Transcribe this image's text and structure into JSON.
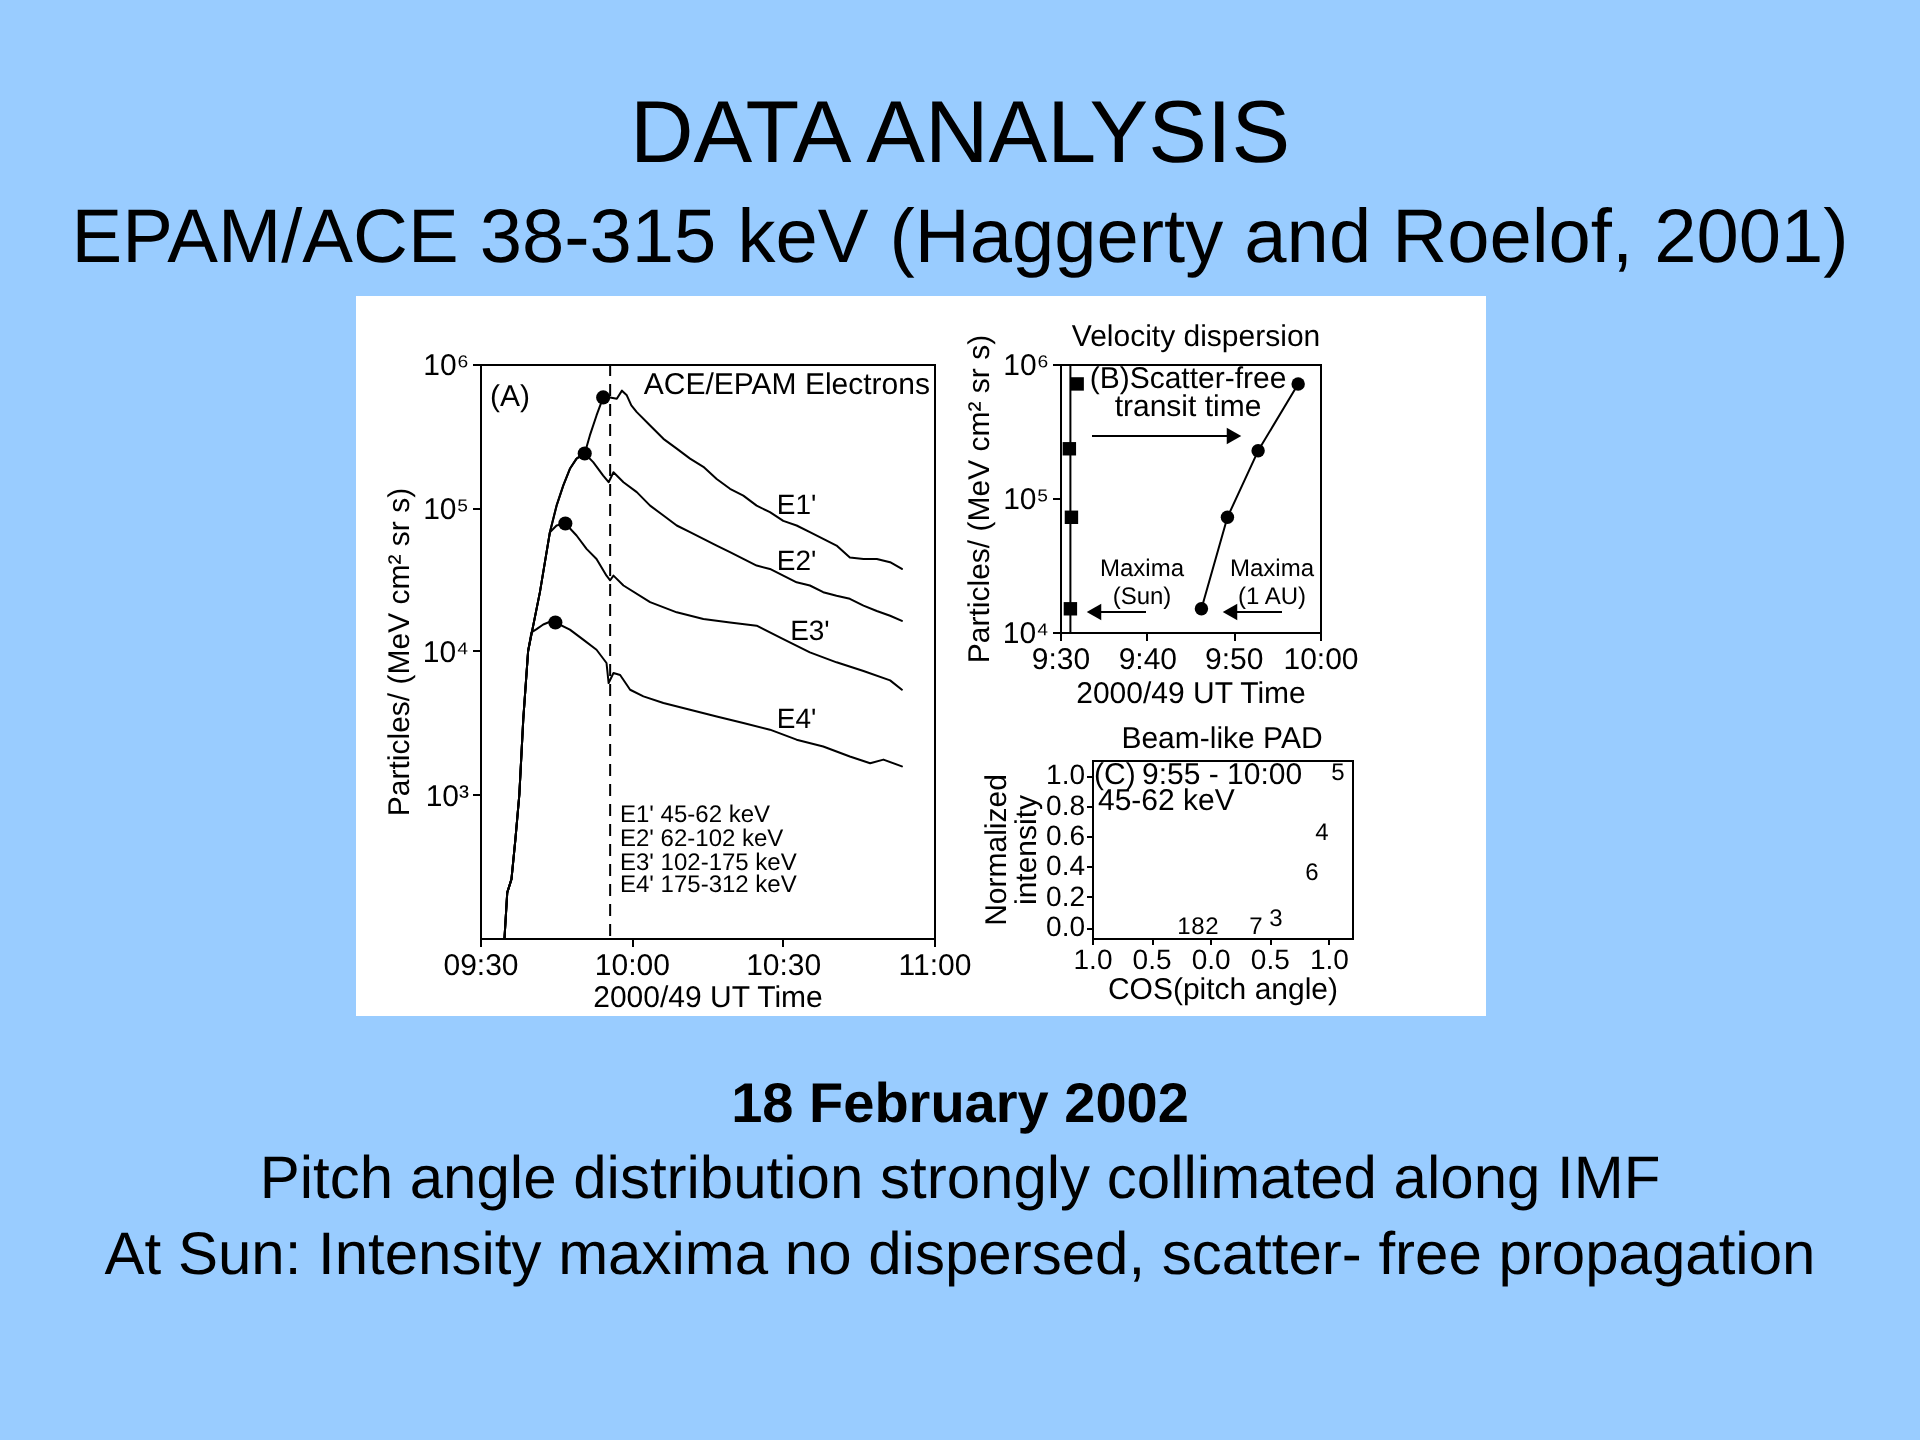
{
  "chart_data": [
    {
      "type": "other",
      "title": "DATA ANALYSIS",
      "subtitle": "EPAM/ACE 38-315 keV  (Haggerty and Roelof, 2001)",
      "annotations": [
        "18 February 2002",
        "Pitch angle distribution strongly collimated along IMF",
        "At Sun: Intensity maxima no dispersed, scatter- free propagation"
      ]
    },
    {
      "type": "line",
      "xlabel": "2000/49 UT Time",
      "ylabel": "Particles/ (MeV cm² sr s)",
      "log": "y",
      "xlim": [
        9.5,
        11
      ],
      "xticks": [
        {
          "value": 9.5,
          "label": "09:30"
        },
        {
          "value": 10,
          "label": "10:00"
        },
        {
          "value": 10.5,
          "label": "10:30"
        },
        {
          "value": 11,
          "label": "11:00"
        }
      ],
      "ylim": [
        100,
        1000000
      ],
      "yticks": [
        {
          "value": 1000,
          "label": "10³"
        },
        {
          "value": 10000,
          "label": "10⁴"
        },
        {
          "value": 100000,
          "label": "10⁵"
        },
        {
          "value": 1000000,
          "label": "10⁶"
        }
      ],
      "series": [
        {
          "name": "E1'",
          "color": "#000000",
          "x": [
            9.581,
            9.59,
            9.604,
            9.617,
            9.63,
            9.643,
            9.659,
            9.698,
            9.731,
            9.753,
            9.775,
            9.797,
            9.819,
            9.846,
            9.863,
            9.885,
            9.907,
            9.93,
            9.952,
            9.969,
            9.985,
            10.0,
            10.018,
            10.062,
            10.106,
            10.15,
            10.194,
            10.238,
            10.282,
            10.326,
            10.37,
            10.414,
            10.458,
            10.502,
            10.546,
            10.59,
            10.634,
            10.678,
            10.722,
            10.767,
            10.811,
            10.855,
            10.894
          ],
          "values": [
            100,
            207,
            257,
            488,
            1000,
            3360,
            10000,
            25700,
            67300,
            103000,
            142000,
            186000,
            219000,
            238000,
            318000,
            438000,
            585000,
            585000,
            573000,
            652000,
            605000,
            515000,
            462000,
            373000,
            301000,
            257000,
            219000,
            192000,
            158000,
            135000,
            121000,
            103000,
            92800,
            80700,
            74900,
            67300,
            60400,
            54300,
            44800,
            43800,
            43800,
            41600,
            37300
          ]
        },
        {
          "name": "E2'",
          "color": "#000000",
          "x": [
            9.581,
            9.59,
            9.604,
            9.617,
            9.63,
            9.643,
            9.659,
            9.698,
            9.731,
            9.753,
            9.775,
            9.797,
            9.819,
            9.846,
            9.874,
            9.907,
            9.925,
            9.941,
            9.974,
            10.018,
            10.062,
            10.106,
            10.15,
            10.194,
            10.238,
            10.282,
            10.326,
            10.37,
            10.414,
            10.458,
            10.502,
            10.546,
            10.59,
            10.634,
            10.678,
            10.722,
            10.767,
            10.811,
            10.855,
            10.894
          ],
          "values": [
            100,
            207,
            257,
            488,
            1000,
            3360,
            10000,
            25700,
            67300,
            103000,
            142000,
            186000,
            219000,
            238000,
            207000,
            167000,
            150000,
            176000,
            150000,
            128000,
            103000,
            88000,
            74900,
            67300,
            60400,
            54300,
            48800,
            43800,
            39400,
            37300,
            33500,
            30100,
            28600,
            25700,
            24300,
            23100,
            20700,
            19000,
            17600,
            16200
          ]
        },
        {
          "name": "E3'",
          "color": "#000000",
          "x": [
            9.581,
            9.59,
            9.604,
            9.617,
            9.63,
            9.643,
            9.659,
            9.698,
            9.731,
            9.753,
            9.782,
            9.819,
            9.852,
            9.885,
            9.918,
            9.93,
            9.941,
            9.974,
            10.062,
            10.15,
            10.238,
            10.326,
            10.414,
            10.502,
            10.59,
            10.678,
            10.767,
            10.855,
            10.894
          ],
          "values": [
            100,
            207,
            257,
            488,
            1000,
            3360,
            10000,
            25700,
            67300,
            74900,
            77300,
            63800,
            51500,
            43800,
            33500,
            31100,
            33500,
            28600,
            21900,
            18600,
            16700,
            15800,
            15000,
            12100,
            9790,
            8340,
            7250,
            6240,
            5370
          ]
        },
        {
          "name": "E4'",
          "color": "#000000",
          "x": [
            9.581,
            9.59,
            9.604,
            9.617,
            9.63,
            9.643,
            9.659,
            9.67,
            9.687,
            9.709,
            9.731,
            9.749,
            9.797,
            9.841,
            9.885,
            9.918,
            9.925,
            9.941,
            9.963,
            9.996,
            10.04,
            10.106,
            10.194,
            10.282,
            10.37,
            10.458,
            10.546,
            10.634,
            10.722,
            10.789,
            10.833,
            10.894
          ],
          "values": [
            100,
            207,
            257,
            488,
            1000,
            3360,
            10000,
            13500,
            14200,
            15300,
            16000,
            15800,
            14100,
            12000,
            10200,
            8250,
            5980,
            7030,
            6800,
            5370,
            4830,
            4340,
            3900,
            3500,
            3150,
            2830,
            2410,
            2160,
            1840,
            1650,
            1750,
            1570
          ]
        },
        {
          "type": "scatter",
          "marker": "circle",
          "color": "#000000",
          "x": [
            9.907,
            9.846,
            9.782,
            9.749
          ],
          "values": [
            585000,
            238000,
            77300,
            15800
          ]
        }
      ],
      "ref_lines": [
        {
          "axis": "x",
          "value": 9.93,
          "color": "#000000",
          "line_style": "dashed"
        }
      ],
      "annotations": [
        "(A)",
        "ACE/EPAM Electrons",
        "E1' 45-62 keV",
        "E2' 62-102 keV",
        "E3' 102-175 keV",
        "E4' 175-312 keV"
      ]
    },
    {
      "type": "scatter",
      "title": "Velocity dispersion",
      "xlabel": "2000/49 UT Time",
      "ylabel": "Particles/ (MeV cm² sr s)",
      "log": "y",
      "xlim": [
        9.5,
        10
      ],
      "xticks": [
        {
          "value": 9.5,
          "label": "9:30"
        },
        {
          "value": 9.667,
          "label": "9:40"
        },
        {
          "value": 9.833,
          "label": "9:50"
        },
        {
          "value": 10,
          "label": "10:00"
        }
      ],
      "ylim": [
        10000,
        1000000
      ],
      "yticks": [
        {
          "value": 10000,
          "label": "10⁴"
        },
        {
          "value": 100000,
          "label": "10⁵"
        },
        {
          "value": 1000000,
          "label": "10⁶"
        }
      ],
      "series": [
        {
          "marker": "square",
          "color": "#000000",
          "x": [
            9.533,
            9.518,
            9.522,
            9.52
          ],
          "values": [
            710000,
            233000,
            71800,
            14900
          ]
        },
        {
          "type": "line",
          "marker": "circle",
          "color": "#000000",
          "x": [
            9.772,
            9.822,
            9.881,
            9.958
          ],
          "values": [
            14900,
            71800,
            225000,
            710000
          ]
        }
      ],
      "ref_lines": [
        {
          "axis": "x",
          "value": 9.52,
          "color": "#000000",
          "line_style": "solid"
        }
      ],
      "annotations": [
        "(B)Scatter-free transit time",
        "Maxima (Sun)",
        "Maxima (1 AU)"
      ]
    },
    {
      "type": "scatter",
      "title": "Beam-like PAD",
      "xlabel": "COS(pitch angle)",
      "ylabel": "Normalized intensity",
      "xlim": [
        -1,
        1.2
      ],
      "xticks": [
        {
          "value": -1,
          "label": "1.0"
        },
        {
          "value": -0.5,
          "label": "0.5"
        },
        {
          "value": 0,
          "label": "0.0"
        },
        0.5,
        {
          "value": 1,
          "label": "1.0"
        }
      ],
      "ylim": [
        -0.07,
        1.1
      ],
      "yticks": [
        {
          "value": 0,
          "label": "0.0"
        },
        0.2,
        0.4,
        0.6,
        0.8,
        {
          "value": 1,
          "label": "1.0"
        }
      ],
      "annotations": [
        "(C)",
        "9:55 - 10:00",
        "45-62 keV",
        "1",
        "2",
        "3",
        "4",
        "5",
        "6",
        "7",
        "8"
      ]
    }
  ]
}
